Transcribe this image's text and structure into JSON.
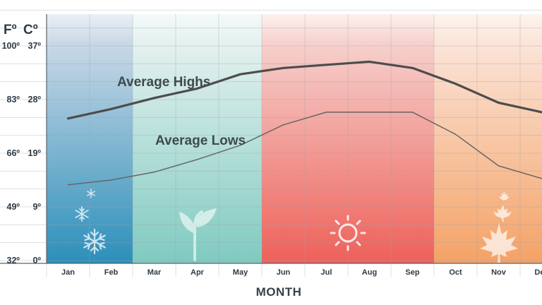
{
  "chart_data": {
    "type": "line",
    "title": "",
    "xlabel": "MONTH",
    "ylabel": "",
    "y_units": [
      "Fº",
      "Cº"
    ],
    "categories": [
      "Jan",
      "Feb",
      "Mar",
      "Apr",
      "May",
      "Jun",
      "Jul",
      "Aug",
      "Sep",
      "Oct",
      "Nov",
      "Dec"
    ],
    "y_ticks_f": [
      "32º",
      "49º",
      "66º",
      "83º",
      "100º"
    ],
    "y_ticks_c": [
      "0º",
      "9º",
      "19º",
      "28º",
      "37º"
    ],
    "ylim": [
      32,
      100
    ],
    "grid": true,
    "series": [
      {
        "name": "Average Highs",
        "color": "#4d4d4d",
        "values": [
          77,
          80,
          83.5,
          86.5,
          91,
          93,
          94,
          95,
          93,
          88,
          82,
          79
        ]
      },
      {
        "name": "Average Lows",
        "color": "#666666",
        "values": [
          56,
          57.5,
          60,
          64,
          68.5,
          75,
          79,
          79,
          79,
          72,
          62,
          58
        ]
      }
    ],
    "seasons": [
      {
        "name": "winter",
        "color_top": "#c9d8e6",
        "color_bottom": "#2b8fba"
      },
      {
        "name": "spring",
        "color_top": "#e4f1ef",
        "color_bottom": "#7fcac0"
      },
      {
        "name": "summer",
        "color_top": "#f6d0cc",
        "color_bottom": "#ee6059"
      },
      {
        "name": "fall",
        "color_top": "#fbe4d8",
        "color_bottom": "#f4a266"
      }
    ],
    "icons": [
      "snowflake-icon",
      "sprout-icon",
      "sun-icon",
      "maple-leaf-icon"
    ]
  }
}
